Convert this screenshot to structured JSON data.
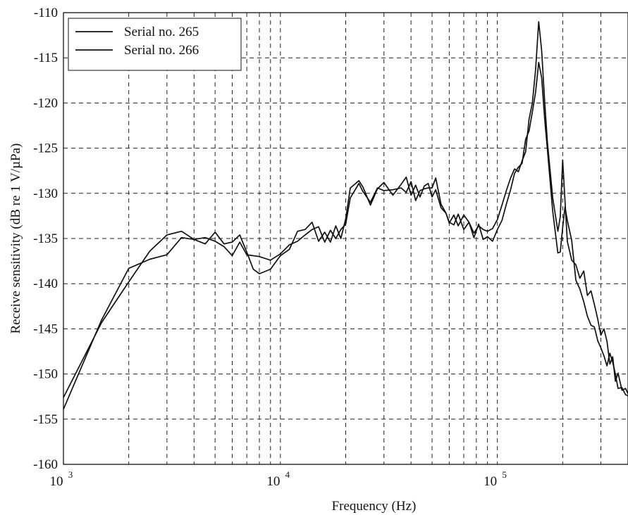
{
  "chart_data": {
    "type": "line",
    "title": "",
    "xlabel": "Frequency (Hz)",
    "ylabel": "Receive sensitivity (dB re 1 V/µPa)",
    "xscale": "log",
    "xlim": [
      1000,
      400000
    ],
    "ylim": [
      -160,
      -110
    ],
    "grid": true,
    "legend_position": "top-left",
    "y_ticks": [
      "-110",
      "-115",
      "-120",
      "-125",
      "-130",
      "-135",
      "-140",
      "-145",
      "-150",
      "-155",
      "-160"
    ],
    "x_tick_labels": [
      {
        "value": 1000,
        "base": "10",
        "exp": "3"
      },
      {
        "value": 10000,
        "base": "10",
        "exp": "4"
      },
      {
        "value": 100000,
        "base": "10",
        "exp": "5"
      }
    ],
    "series": [
      {
        "name": "Serial no. 265",
        "points": [
          [
            1000,
            -153.9
          ],
          [
            1500,
            -144.0
          ],
          [
            2000,
            -138.3
          ],
          [
            2500,
            -137.3
          ],
          [
            3000,
            -136.8
          ],
          [
            3500,
            -134.9
          ],
          [
            4000,
            -135.1
          ],
          [
            4500,
            -135.6
          ],
          [
            5000,
            -134.3
          ],
          [
            5500,
            -135.6
          ],
          [
            6000,
            -135.4
          ],
          [
            6500,
            -134.6
          ],
          [
            7000,
            -136.5
          ],
          [
            7500,
            -138.4
          ],
          [
            8000,
            -138.9
          ],
          [
            9000,
            -138.4
          ],
          [
            10000,
            -136.9
          ],
          [
            11000,
            -136.2
          ],
          [
            12000,
            -134.2
          ],
          [
            13000,
            -134.0
          ],
          [
            14000,
            -133.2
          ],
          [
            15000,
            -135.3
          ],
          [
            16000,
            -134.3
          ],
          [
            17000,
            -135.4
          ],
          [
            18000,
            -133.6
          ],
          [
            19000,
            -135.0
          ],
          [
            20000,
            -132.8
          ],
          [
            21000,
            -129.4
          ],
          [
            22000,
            -129.0
          ],
          [
            23000,
            -128.6
          ],
          [
            24000,
            -129.3
          ],
          [
            26000,
            -131.3
          ],
          [
            28000,
            -129.5
          ],
          [
            30000,
            -128.8
          ],
          [
            33000,
            -130.2
          ],
          [
            36000,
            -129.0
          ],
          [
            38000,
            -128.2
          ],
          [
            40000,
            -130.2
          ],
          [
            42000,
            -129.1
          ],
          [
            44000,
            -130.4
          ],
          [
            46000,
            -129.2
          ],
          [
            48000,
            -128.9
          ],
          [
            50000,
            -130.4
          ],
          [
            52000,
            -129.6
          ],
          [
            55000,
            -131.6
          ],
          [
            58000,
            -132.2
          ],
          [
            60000,
            -133.3
          ],
          [
            63000,
            -132.4
          ],
          [
            66000,
            -133.6
          ],
          [
            70000,
            -132.4
          ],
          [
            74000,
            -133.2
          ],
          [
            78000,
            -134.4
          ],
          [
            82000,
            -133.6
          ],
          [
            86000,
            -134.0
          ],
          [
            90000,
            -134.2
          ],
          [
            95000,
            -133.9
          ],
          [
            100000,
            -132.9
          ],
          [
            105000,
            -131.3
          ],
          [
            110000,
            -129.7
          ],
          [
            115000,
            -128.3
          ],
          [
            120000,
            -127.3
          ],
          [
            125000,
            -127.6
          ],
          [
            130000,
            -126.4
          ],
          [
            135000,
            -125.4
          ],
          [
            140000,
            -121.8
          ],
          [
            145000,
            -120.0
          ],
          [
            150000,
            -116.3
          ],
          [
            155000,
            -111.0
          ],
          [
            160000,
            -114.2
          ],
          [
            165000,
            -119.6
          ],
          [
            170000,
            -124.3
          ],
          [
            180000,
            -130.5
          ],
          [
            190000,
            -134.2
          ],
          [
            195000,
            -132.6
          ],
          [
            200000,
            -126.3
          ],
          [
            205000,
            -130.8
          ],
          [
            210000,
            -135.3
          ],
          [
            220000,
            -137.4
          ],
          [
            230000,
            -137.9
          ],
          [
            240000,
            -139.4
          ],
          [
            250000,
            -138.6
          ],
          [
            260000,
            -141.3
          ],
          [
            270000,
            -140.8
          ],
          [
            280000,
            -142.3
          ],
          [
            290000,
            -143.9
          ],
          [
            300000,
            -145.7
          ],
          [
            310000,
            -145.0
          ],
          [
            320000,
            -146.4
          ],
          [
            330000,
            -148.9
          ],
          [
            340000,
            -148.1
          ],
          [
            350000,
            -150.8
          ],
          [
            360000,
            -149.9
          ],
          [
            375000,
            -151.8
          ],
          [
            390000,
            -151.6
          ],
          [
            400000,
            -152.2
          ]
        ]
      },
      {
        "name": "Serial no. 266",
        "points": [
          [
            1000,
            -152.6
          ],
          [
            1500,
            -144.3
          ],
          [
            2000,
            -139.8
          ],
          [
            2500,
            -136.4
          ],
          [
            3000,
            -134.6
          ],
          [
            3500,
            -134.2
          ],
          [
            4000,
            -135.1
          ],
          [
            4500,
            -134.9
          ],
          [
            5000,
            -135.3
          ],
          [
            5500,
            -135.9
          ],
          [
            6000,
            -136.9
          ],
          [
            6500,
            -135.4
          ],
          [
            7000,
            -136.8
          ],
          [
            8000,
            -137.0
          ],
          [
            9000,
            -137.4
          ],
          [
            10000,
            -136.7
          ],
          [
            11000,
            -135.7
          ],
          [
            12000,
            -135.3
          ],
          [
            13000,
            -134.6
          ],
          [
            14000,
            -134.0
          ],
          [
            15000,
            -133.7
          ],
          [
            16000,
            -135.4
          ],
          [
            17000,
            -134.1
          ],
          [
            18000,
            -135.0
          ],
          [
            19000,
            -134.0
          ],
          [
            20000,
            -133.4
          ],
          [
            21000,
            -130.5
          ],
          [
            22000,
            -129.7
          ],
          [
            23000,
            -128.9
          ],
          [
            24000,
            -129.8
          ],
          [
            26000,
            -131.0
          ],
          [
            28000,
            -129.4
          ],
          [
            30000,
            -129.7
          ],
          [
            33000,
            -129.6
          ],
          [
            36000,
            -129.4
          ],
          [
            38000,
            -129.9
          ],
          [
            40000,
            -128.7
          ],
          [
            42000,
            -130.8
          ],
          [
            44000,
            -129.7
          ],
          [
            46000,
            -129.5
          ],
          [
            48000,
            -129.4
          ],
          [
            50000,
            -129.4
          ],
          [
            52000,
            -128.3
          ],
          [
            55000,
            -131.2
          ],
          [
            58000,
            -132.2
          ],
          [
            60000,
            -133.2
          ],
          [
            63000,
            -133.5
          ],
          [
            66000,
            -132.3
          ],
          [
            70000,
            -134.0
          ],
          [
            74000,
            -133.2
          ],
          [
            78000,
            -134.9
          ],
          [
            82000,
            -133.4
          ],
          [
            86000,
            -135.1
          ],
          [
            90000,
            -134.8
          ],
          [
            95000,
            -135.3
          ],
          [
            100000,
            -134.0
          ],
          [
            105000,
            -133.0
          ],
          [
            110000,
            -131.2
          ],
          [
            115000,
            -129.6
          ],
          [
            120000,
            -127.8
          ],
          [
            125000,
            -127.1
          ],
          [
            130000,
            -126.7
          ],
          [
            135000,
            -124.0
          ],
          [
            140000,
            -123.1
          ],
          [
            145000,
            -121.0
          ],
          [
            150000,
            -118.8
          ],
          [
            155000,
            -115.5
          ],
          [
            160000,
            -117.2
          ],
          [
            165000,
            -121.6
          ],
          [
            170000,
            -125.1
          ],
          [
            180000,
            -132.0
          ],
          [
            190000,
            -136.6
          ],
          [
            195000,
            -136.5
          ],
          [
            200000,
            -133.8
          ],
          [
            205000,
            -131.5
          ],
          [
            210000,
            -133.0
          ],
          [
            220000,
            -135.2
          ],
          [
            230000,
            -139.6
          ],
          [
            240000,
            -140.6
          ],
          [
            250000,
            -142.0
          ],
          [
            260000,
            -143.6
          ],
          [
            270000,
            -144.6
          ],
          [
            280000,
            -144.8
          ],
          [
            290000,
            -146.3
          ],
          [
            300000,
            -147.1
          ],
          [
            310000,
            -148.0
          ],
          [
            320000,
            -149.1
          ],
          [
            330000,
            -147.7
          ],
          [
            340000,
            -148.7
          ],
          [
            350000,
            -150.0
          ],
          [
            360000,
            -151.6
          ],
          [
            375000,
            -151.5
          ],
          [
            390000,
            -152.3
          ],
          [
            400000,
            -152.4
          ]
        ]
      }
    ]
  }
}
